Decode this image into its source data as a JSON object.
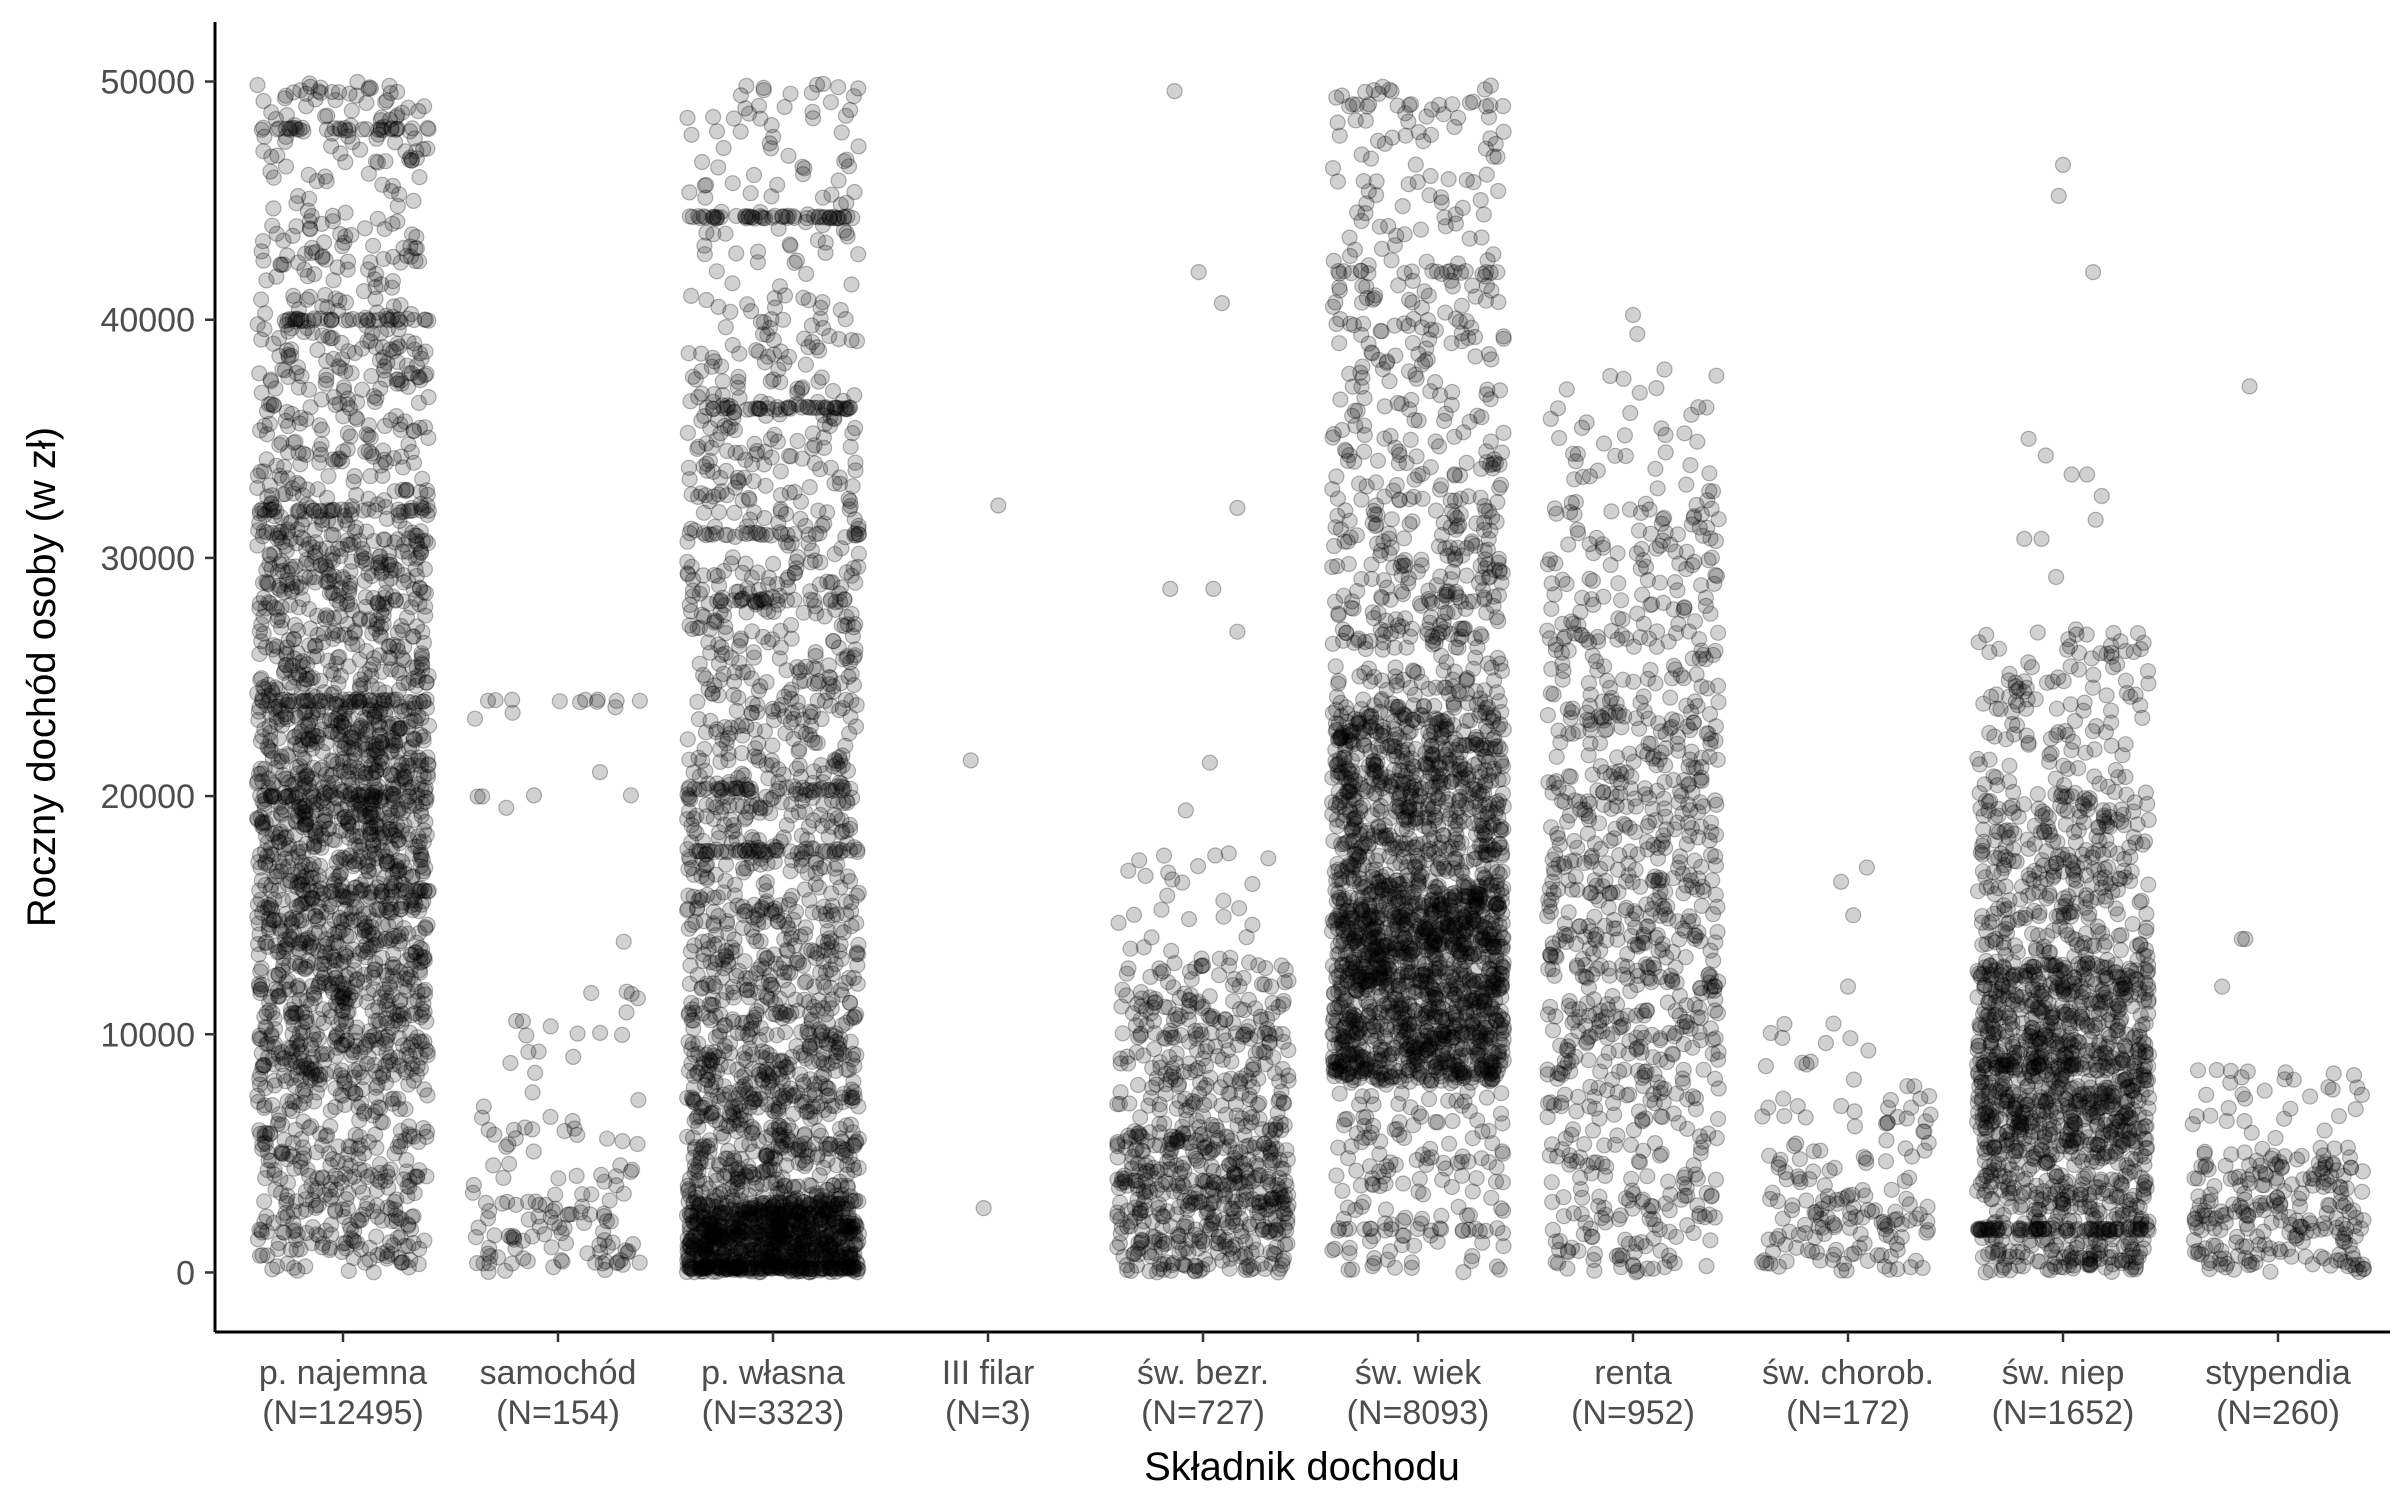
{
  "chart_data": {
    "type": "scatter",
    "title": "",
    "xlabel": "Składnik dochodu",
    "ylabel": "Roczny dochód osoby (w zł)",
    "ylim": [
      -2500,
      52500
    ],
    "y_ticks": [
      0,
      10000,
      20000,
      30000,
      40000,
      50000
    ],
    "y_tick_labels": [
      "0",
      "10000",
      "20000",
      "30000",
      "40000",
      "50000"
    ],
    "grid": false,
    "point_color": "#000000",
    "point_alpha": 0.18,
    "categories": [
      {
        "line1": "p. najemna",
        "line2": "(N=12495)",
        "n": 12495
      },
      {
        "line1": "samochód",
        "line2": "(N=154)",
        "n": 154
      },
      {
        "line1": "p. własna",
        "line2": "(N=3323)",
        "n": 3323
      },
      {
        "line1": "III filar",
        "line2": "(N=3)",
        "n": 3
      },
      {
        "line1": "św. bezr.",
        "line2": "(N=727)",
        "n": 727
      },
      {
        "line1": "św. wiek",
        "line2": "(N=8093)",
        "n": 8093
      },
      {
        "line1": "renta",
        "line2": "(N=952)",
        "n": 952
      },
      {
        "line1": "św. chorob.",
        "line2": "(N=172)",
        "n": 172
      },
      {
        "line1": "św. niep",
        "line2": "(N=1652)",
        "n": 1652
      },
      {
        "line1": "stypendia",
        "line2": "(N=260)",
        "n": 260
      }
    ],
    "series": [
      {
        "category": "p. najemna",
        "n": 12495,
        "range": [
          0,
          50000
        ],
        "bands": [
          [
            0,
            8000,
            0.13
          ],
          [
            8000,
            16000,
            0.24
          ],
          [
            16000,
            24000,
            0.28
          ],
          [
            24000,
            32000,
            0.17
          ],
          [
            32000,
            40000,
            0.1
          ],
          [
            40000,
            48000,
            0.06
          ],
          [
            48000,
            50000,
            0.02
          ]
        ],
        "lines": [
          [
            48000,
            0.012
          ],
          [
            40000,
            0.012
          ],
          [
            32000,
            0.01
          ],
          [
            24000,
            0.014
          ],
          [
            20000,
            0.008
          ],
          [
            16000,
            0.008
          ],
          [
            4000,
            0.003
          ]
        ]
      },
      {
        "category": "samochód",
        "n": 154,
        "range": [
          0,
          24000
        ],
        "bands": [
          [
            0,
            3000,
            0.55
          ],
          [
            3000,
            7000,
            0.2
          ],
          [
            7000,
            12000,
            0.1
          ],
          [
            12000,
            24000,
            0.05
          ]
        ],
        "lines": [
          [
            24000,
            0.06
          ],
          [
            20000,
            0.02
          ],
          [
            10000,
            0.02
          ],
          [
            6000,
            0.03
          ],
          [
            4000,
            0.02
          ]
        ],
        "extra": [
          [
            300,
            20000
          ]
        ]
      },
      {
        "category": "p. własna",
        "n": 3323,
        "range": [
          0,
          50000
        ],
        "bands": [
          [
            0,
            3000,
            0.28
          ],
          [
            3000,
            10000,
            0.18
          ],
          [
            10000,
            20000,
            0.17
          ],
          [
            20000,
            30000,
            0.12
          ],
          [
            30000,
            40000,
            0.08
          ],
          [
            40000,
            50000,
            0.04
          ]
        ],
        "lines": [
          [
            44300,
            0.02
          ],
          [
            36300,
            0.015
          ],
          [
            31000,
            0.01
          ],
          [
            28200,
            0.008
          ],
          [
            20300,
            0.01
          ],
          [
            17700,
            0.012
          ],
          [
            200,
            0.04
          ]
        ]
      },
      {
        "category": "III filar",
        "n": 3,
        "range": [
          2500,
          32500
        ],
        "points": [
          [
            -0.2,
            21500
          ],
          [
            0.12,
            32200
          ],
          [
            -0.05,
            2700
          ]
        ]
      },
      {
        "category": "św. bezr.",
        "n": 727,
        "range": [
          0,
          50000
        ],
        "bands": [
          [
            0,
            6000,
            0.58
          ],
          [
            6000,
            13000,
            0.33
          ],
          [
            13000,
            18000,
            0.04
          ]
        ],
        "lines": [
          [
            3800,
            0.02
          ],
          [
            10000,
            0.02
          ]
        ],
        "extra": [
          [
            -0.33,
            49600
          ],
          [
            -0.05,
            42000
          ],
          [
            0.22,
            40700
          ],
          [
            0.12,
            28700
          ],
          [
            -0.38,
            28700
          ],
          [
            0.4,
            32100
          ],
          [
            0.4,
            26900
          ],
          [
            0.08,
            21400
          ],
          [
            -0.2,
            19400
          ],
          [
            0.3,
            17600
          ]
        ]
      },
      {
        "category": "św. wiek",
        "n": 8093,
        "range": [
          0,
          50000
        ],
        "bands": [
          [
            0,
            8000,
            0.06
          ],
          [
            8000,
            16000,
            0.46
          ],
          [
            16000,
            24000,
            0.27
          ],
          [
            24000,
            32000,
            0.1
          ],
          [
            32000,
            40000,
            0.06
          ],
          [
            40000,
            50000,
            0.05
          ]
        ],
        "lines": [
          [
            42000,
            0.006
          ],
          [
            49000,
            0.004
          ],
          [
            1800,
            0.007
          ]
        ]
      },
      {
        "category": "renta",
        "n": 952,
        "range": [
          0,
          38000
        ],
        "bands": [
          [
            0,
            8000,
            0.2
          ],
          [
            8000,
            16000,
            0.3
          ],
          [
            16000,
            24000,
            0.28
          ],
          [
            24000,
            32000,
            0.17
          ],
          [
            32000,
            38000,
            0.05
          ]
        ],
        "lines": [],
        "extra": [
          [
            0.0,
            40200
          ],
          [
            0.05,
            39400
          ]
        ]
      },
      {
        "category": "św. chorob.",
        "n": 172,
        "range": [
          0,
          10500
        ],
        "bands": [
          [
            0,
            4000,
            0.65
          ],
          [
            4000,
            8000,
            0.28
          ],
          [
            8000,
            10500,
            0.07
          ]
        ],
        "lines": [],
        "extra": [
          [
            -0.08,
            16400
          ],
          [
            0.22,
            17000
          ],
          [
            0.06,
            15000
          ],
          [
            0.0,
            12000
          ]
        ]
      },
      {
        "category": "św. niep",
        "n": 1652,
        "range": [
          0,
          27000
        ],
        "bands": [
          [
            0,
            5000,
            0.2
          ],
          [
            5000,
            13000,
            0.5
          ],
          [
            13000,
            20000,
            0.18
          ],
          [
            20000,
            27000,
            0.08
          ]
        ],
        "lines": [
          [
            1800,
            0.04
          ],
          [
            8700,
            0.01
          ],
          [
            7200,
            0.008
          ]
        ],
        "extra": [
          [
            0.0,
            46500
          ],
          [
            -0.05,
            45200
          ],
          [
            0.35,
            42000
          ],
          [
            -0.4,
            35000
          ],
          [
            -0.2,
            34300
          ],
          [
            0.1,
            33500
          ],
          [
            0.28,
            33500
          ],
          [
            0.45,
            32600
          ],
          [
            0.38,
            31600
          ],
          [
            -0.45,
            30800
          ],
          [
            -0.25,
            30800
          ],
          [
            -0.08,
            29200
          ],
          [
            0.15,
            27000
          ]
        ]
      },
      {
        "category": "stypendia",
        "n": 260,
        "range": [
          0,
          8500
        ],
        "bands": [
          [
            0,
            3000,
            0.55
          ],
          [
            3000,
            5000,
            0.3
          ],
          [
            5000,
            8500,
            0.15
          ]
        ],
        "lines": [],
        "extra": [
          [
            -0.33,
            37200
          ],
          [
            -0.42,
            14000
          ],
          [
            -0.38,
            14000
          ],
          [
            -0.65,
            12000
          ]
        ]
      }
    ]
  }
}
